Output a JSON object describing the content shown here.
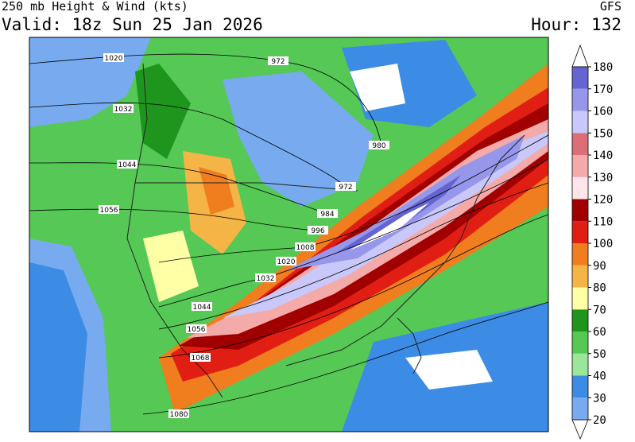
{
  "header": {
    "title": "250 mb Height & Wind (kts)",
    "model": "GFS",
    "valid": "Valid: 18z Sun 25 Jan 2026",
    "hour": "Hour: 132"
  },
  "colorbar": {
    "ticks": [
      20,
      30,
      40,
      50,
      60,
      70,
      80,
      90,
      100,
      110,
      120,
      130,
      140,
      150,
      160,
      170,
      180
    ],
    "colors": [
      "#78aaf0",
      "#3c8ce6",
      "#9be69b",
      "#55c855",
      "#1e961e",
      "#ffffa5",
      "#f5b446",
      "#f07d1e",
      "#e11e14",
      "#a00000",
      "#ffe6eb",
      "#f5aaaa",
      "#dc6e78",
      "#c8c8fa",
      "#9696eb",
      "#6464d2"
    ]
  },
  "contour_labels": [
    "1020",
    "972",
    "1032",
    "1044",
    "1056",
    "1068",
    "1080",
    "980",
    "972",
    "984",
    "996",
    "1008",
    "1020",
    "1032",
    "1044",
    "1056"
  ]
}
